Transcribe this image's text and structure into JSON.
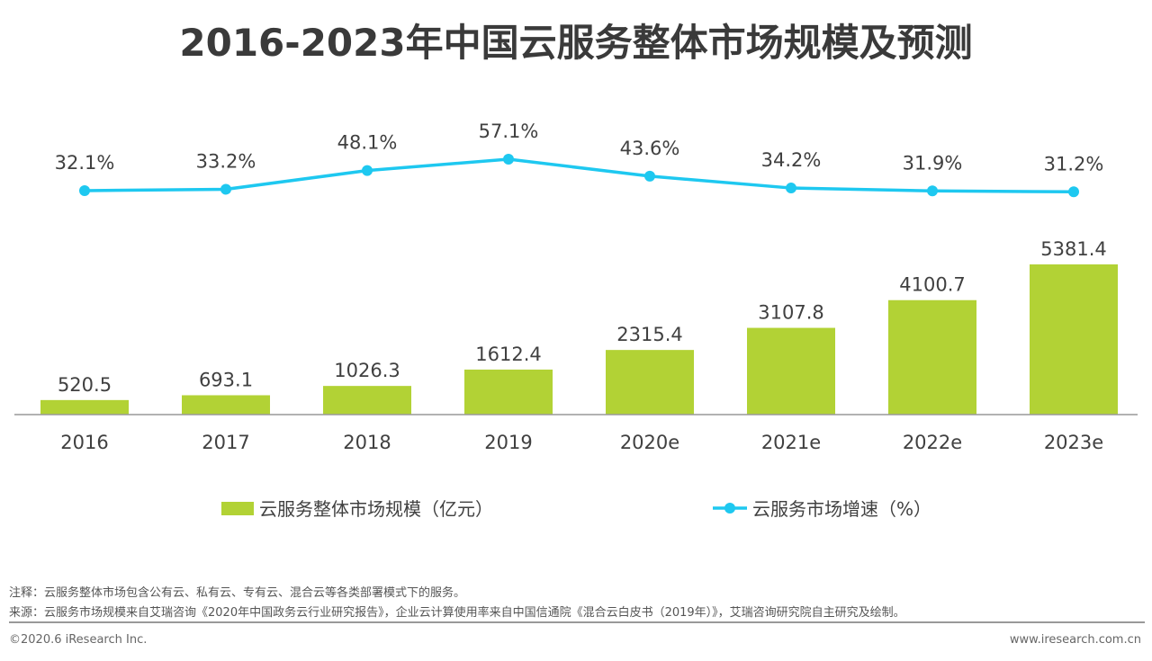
{
  "chart_data": {
    "type": "bar+line",
    "title": "2016-2023年中国云服务整体市场规模及预测",
    "categories": [
      "2016",
      "2017",
      "2018",
      "2019",
      "2020e",
      "2021e",
      "2022e",
      "2023e"
    ],
    "series": [
      {
        "name": "云服务整体市场规模（亿元）",
        "type": "bar",
        "color": "#b2d235",
        "values": [
          520.5,
          693.1,
          1026.3,
          1612.4,
          2315.4,
          3107.8,
          4100.7,
          5381.4
        ]
      },
      {
        "name": "云服务市场增速（%）",
        "type": "line",
        "color": "#1ec8f0",
        "values": [
          32.1,
          33.2,
          48.1,
          57.1,
          43.6,
          34.2,
          31.9,
          31.2
        ],
        "labels": [
          "32.1%",
          "33.2%",
          "48.1%",
          "57.1%",
          "43.6%",
          "34.2%",
          "31.9%",
          "31.2%"
        ]
      }
    ],
    "legend_position": "bottom",
    "grid": false
  },
  "footer": {
    "note": "注释：云服务整体市场包含公有云、私有云、专有云、混合云等各类部署模式下的服务。",
    "source": "来源：云服务市场规模来自艾瑞咨询《2020年中国政务云行业研究报告》，企业云计算使用率来自中国信通院《混合云白皮书（2019年）》，艾瑞咨询研究院自主研究及绘制。",
    "copyright": "©2020.6 iResearch Inc.",
    "website": "www.iresearch.com.cn"
  }
}
